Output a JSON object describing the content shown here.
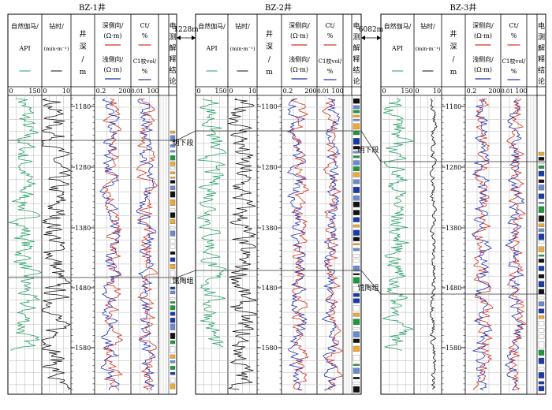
{
  "wells": [
    {
      "name": "BZ-1井",
      "headers": {
        "gamma": [
          "自然伽马/",
          "API"
        ],
        "drill": [
          "钻时/",
          "(min·m⁻¹)"
        ],
        "depth": [
          "井",
          "深",
          "/",
          "m"
        ],
        "res_deep": [
          "深侧向/",
          "(Ω·m)"
        ],
        "res_shallow": [
          "浅侧向/",
          "(Ω·m)"
        ],
        "ct": [
          "Ct/",
          "%"
        ],
        "c1": [
          "C1校vol/",
          "%"
        ],
        "interp": [
          "电",
          "测",
          "解",
          "释",
          "结",
          "论"
        ]
      },
      "scales": {
        "gamma": [
          "0",
          "150"
        ],
        "drill": [
          "0",
          "10"
        ],
        "res": [
          "0.2",
          "200"
        ],
        "gas": [
          "0.01",
          "100"
        ]
      },
      "depth_ticks": [
        "1180",
        "1280",
        "1380",
        "1480",
        "1580"
      ]
    },
    {
      "name": "BZ-2井",
      "headers": {
        "gamma": [
          "自然伽马/",
          "API"
        ],
        "drill": [
          "钻时/",
          "(min·m⁻¹)"
        ],
        "depth": [
          "井",
          "深",
          "/",
          "m"
        ],
        "res_deep": [
          "深侧向/",
          "(Ω·m)"
        ],
        "res_shallow": [
          "浅侧向/",
          "(Ω·m)"
        ],
        "ct": [
          "Ct/",
          "%"
        ],
        "c1": [
          "C1校vol/",
          "%"
        ],
        "interp": [
          "电",
          "测",
          "解",
          "释",
          "结",
          "论"
        ]
      },
      "scales": {
        "gamma": [
          "0",
          "150"
        ],
        "drill": [
          "0",
          "10"
        ],
        "res": [
          "0.2",
          "200"
        ],
        "gas": [
          "0.01",
          "100"
        ]
      },
      "depth_ticks": [
        "1180",
        "1280",
        "1380",
        "1480",
        "1580"
      ]
    },
    {
      "name": "BZ-3井",
      "headers": {
        "gamma": [
          "自然伽马/",
          "API"
        ],
        "drill": [
          "钻时/",
          "(min·m⁻¹)"
        ],
        "depth": [
          "井",
          "深",
          "/",
          "m"
        ],
        "res_deep": [
          "深侧向/",
          "(Ω·m)"
        ],
        "res_shallow": [
          "浅侧向/",
          "(Ω·m)"
        ],
        "ct": [
          "Ct/",
          "%"
        ],
        "c1": [
          "C1校vol/",
          "%"
        ],
        "interp": [
          "电",
          "测",
          "解",
          "释",
          "结",
          "论"
        ]
      },
      "scales": {
        "gamma": [
          "0",
          "150"
        ],
        "drill": [
          "0",
          "10"
        ],
        "res": [
          "0.2",
          "200"
        ],
        "gas": [
          "0.01",
          "100"
        ]
      },
      "depth_ticks": [
        "1180",
        "1280",
        "1380",
        "1480",
        "1580"
      ]
    }
  ],
  "distances": [
    "1228m",
    "6082m"
  ],
  "formations": [
    "明下段",
    "馆陶组"
  ],
  "colors": {
    "gamma": "#22a060",
    "drill": "#111111",
    "deep": "#d03020",
    "shallow": "#2030b0",
    "grid": "#b8b8b8",
    "interp_palette": [
      "#1a9a3a",
      "#1a3aa8",
      "#111111",
      "#f0a830",
      "#6a8ad0",
      "#ffffff"
    ]
  }
}
